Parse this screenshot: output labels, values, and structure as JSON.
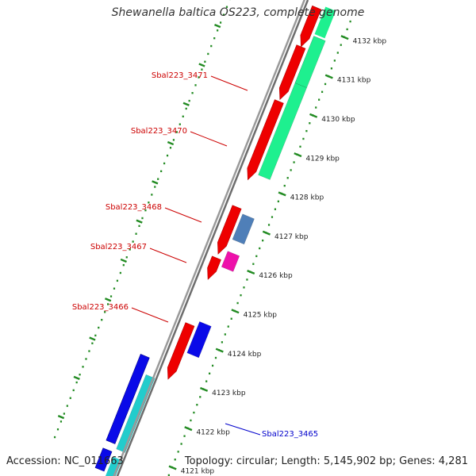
{
  "title": "Shewanella baltica OS223, complete genome",
  "footer": {
    "accession": "Accession: NC_011663",
    "summary": "Topology: circular; Length: 5,145,902 bp; Genes: 4,281"
  },
  "axis": {
    "unit": "kbp",
    "ticks": [
      {
        "kbp": 4132,
        "label": "4132 kbp"
      },
      {
        "kbp": 4131,
        "label": "4131 kbp"
      },
      {
        "kbp": 4130,
        "label": "4130 kbp"
      },
      {
        "kbp": 4129,
        "label": "4129 kbp"
      },
      {
        "kbp": 4128,
        "label": "4128 kbp"
      },
      {
        "kbp": 4127,
        "label": "4127 kbp"
      },
      {
        "kbp": 4126,
        "label": "4126 kbp"
      },
      {
        "kbp": 4125,
        "label": "4125 kbp"
      },
      {
        "kbp": 4124,
        "label": "4124 kbp"
      },
      {
        "kbp": 4123,
        "label": "4123 kbp"
      },
      {
        "kbp": 4122,
        "label": "4122 kbp"
      },
      {
        "kbp": 4121,
        "label": "4121 kbp"
      }
    ]
  },
  "colors": {
    "backbone": "#8c8c8c",
    "forward_label": "#cc0000",
    "reverse_label": "#0000cc",
    "cds_arrow": "#ee0000",
    "ruler_dots": "#228b22"
  },
  "genes": [
    {
      "name": "Sbal223_3471",
      "strand": "outer",
      "start": 4130.55,
      "end": 4131.75,
      "color": "#1ef08f"
    },
    {
      "name": "Sbal223_3470",
      "strand": "outer",
      "start": 4128.2,
      "end": 4130.55,
      "color": "#1ef08f"
    },
    {
      "name": "Sbal223_3468",
      "strand": "outer",
      "start": 4126.55,
      "end": 4127.2,
      "color": "#4f7fb8"
    },
    {
      "name": "Sbal223_3467",
      "strand": "outer",
      "start": 4125.85,
      "end": 4126.25,
      "color": "#ee11aa"
    },
    {
      "name": "Sbal223_3466",
      "strand": "outer",
      "start": 4123.65,
      "end": 4124.45,
      "color": "#0a0ae8"
    },
    {
      "name": "Sbal223_3465",
      "strand": "inner",
      "start": 4120.9,
      "end": 4122.8,
      "color": "#22cccc"
    }
  ],
  "labeled_genes": [
    {
      "name": "Sbal223_3471",
      "color": "#cc0000"
    },
    {
      "name": "Sbal223_3470",
      "color": "#cc0000"
    },
    {
      "name": "Sbal223_3468",
      "color": "#cc0000"
    },
    {
      "name": "Sbal223_3467",
      "color": "#cc0000"
    },
    {
      "name": "Sbal223_3466",
      "color": "#cc0000"
    },
    {
      "name": "Sbal223_3465",
      "color": "#0000cc"
    }
  ]
}
